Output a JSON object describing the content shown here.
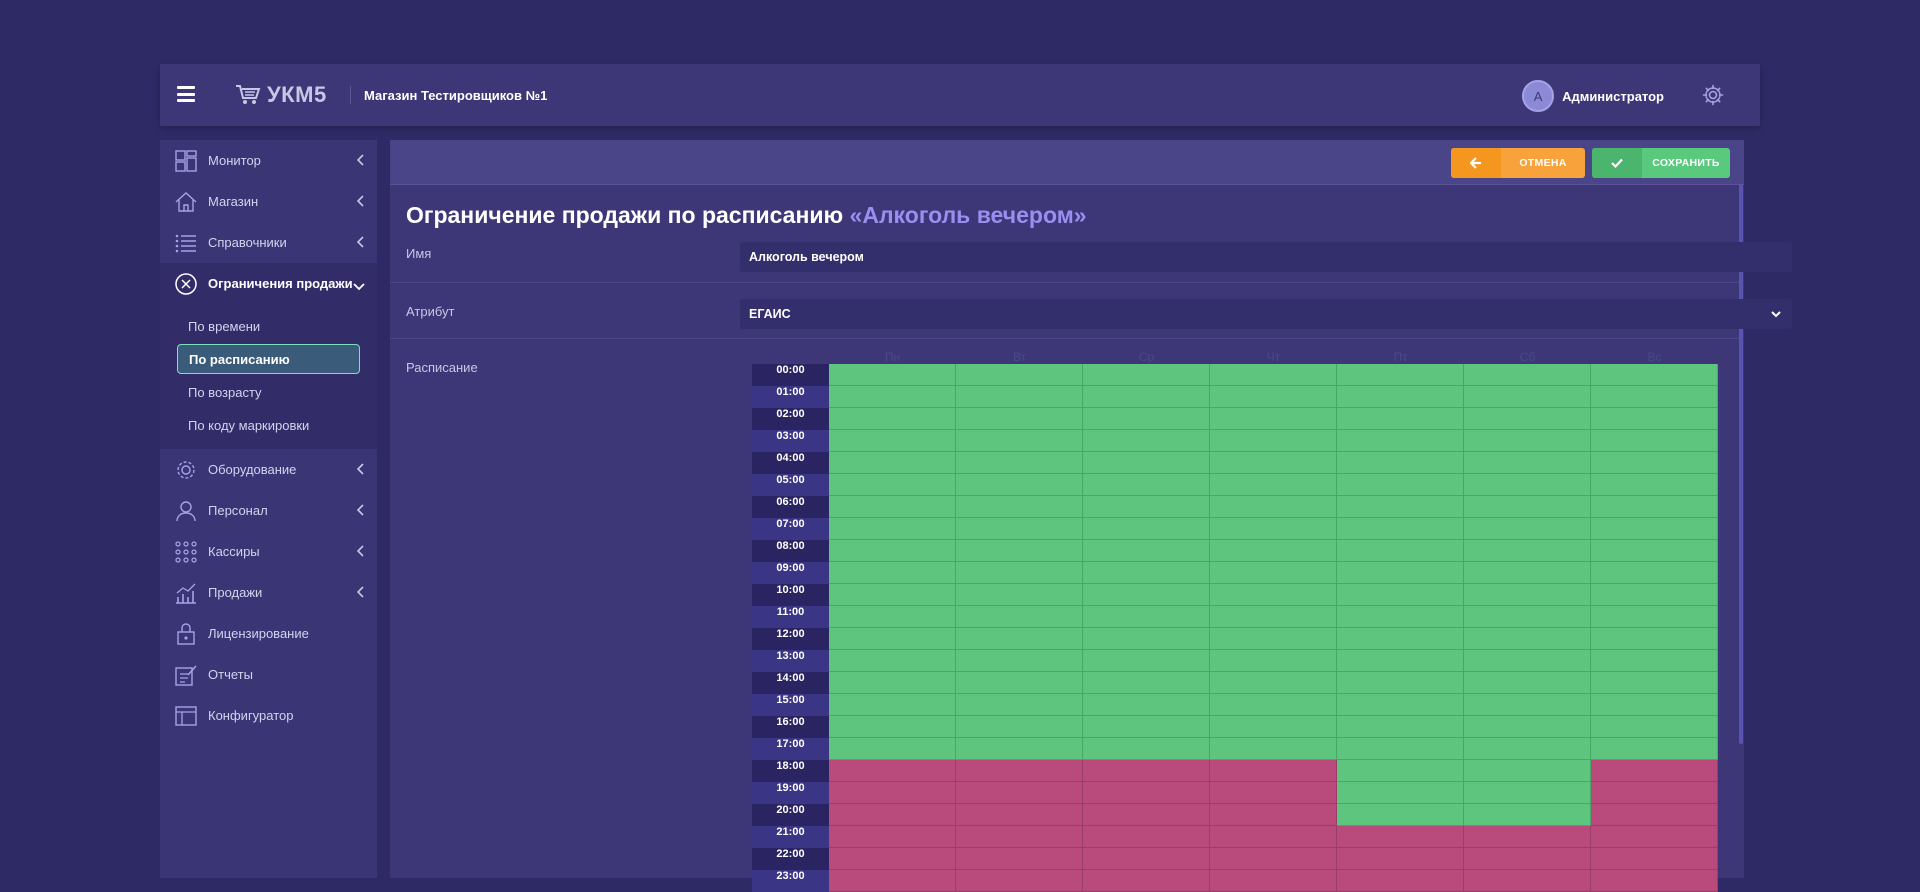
{
  "header": {
    "logo_text": "УКМ5",
    "store_name": "Магазин Тестировщиков №1",
    "user": {
      "initial": "А",
      "name": "Администратор"
    }
  },
  "sidebar": {
    "items": [
      {
        "label": "Монитор",
        "icon": "monitor-icon",
        "chevron": "left"
      },
      {
        "label": "Магазин",
        "icon": "home-icon",
        "chevron": "left"
      },
      {
        "label": "Справочники",
        "icon": "list-icon",
        "chevron": "left"
      },
      {
        "label": "Ограничения продажи",
        "icon": "restriction-icon",
        "chevron": "down",
        "active": true
      }
    ],
    "submenu": [
      {
        "label": "По времени"
      },
      {
        "label": "По расписанию",
        "active": true
      },
      {
        "label": "По возрасту"
      },
      {
        "label": "По коду маркировки"
      }
    ],
    "items_after": [
      {
        "label": "Оборудование",
        "icon": "gear-icon",
        "chevron": "left"
      },
      {
        "label": "Персонал",
        "icon": "person-icon",
        "chevron": "left"
      },
      {
        "label": "Кассиры",
        "icon": "grid-dots-icon",
        "chevron": "left"
      },
      {
        "label": "Продажи",
        "icon": "bar-chart-icon",
        "chevron": "left"
      },
      {
        "label": "Лицензирование",
        "icon": "lock-icon"
      },
      {
        "label": "Отчеты",
        "icon": "report-icon"
      },
      {
        "label": "Конфигуратор",
        "icon": "configurator-icon"
      }
    ]
  },
  "toolbar": {
    "cancel_label": "ОТМЕНА",
    "save_label": "СОХРАНИТЬ"
  },
  "page": {
    "title": "Ограничение продажи по расписанию",
    "title_accent": "«Алкоголь вечером»"
  },
  "form": {
    "name_label": "Имя",
    "name_value": "Алкоголь вечером",
    "attribute_label": "Атрибут",
    "attribute_value": "ЕГАИС",
    "schedule_label": "Расписание"
  },
  "schedule": {
    "days": [
      "Пн",
      "Вт",
      "Ср",
      "Чт",
      "Пт",
      "Сб",
      "Вс"
    ],
    "hours": [
      "00:00",
      "01:00",
      "02:00",
      "03:00",
      "04:00",
      "05:00",
      "06:00",
      "07:00",
      "08:00",
      "09:00",
      "10:00",
      "11:00",
      "12:00",
      "13:00",
      "14:00",
      "15:00",
      "16:00",
      "17:00",
      "18:00",
      "19:00",
      "20:00",
      "21:00",
      "22:00",
      "23:00"
    ],
    "colors": {
      "allowed": "#5dc57e",
      "restricted": "#b84a7c"
    },
    "restricted": [
      [
        18,
        19,
        20,
        21,
        22,
        23
      ],
      [
        18,
        19,
        20,
        21,
        22,
        23
      ],
      [
        18,
        19,
        20,
        21,
        22,
        23
      ],
      [
        18,
        19,
        20,
        21,
        22,
        23
      ],
      [
        21,
        22,
        23
      ],
      [
        21,
        22,
        23
      ],
      [
        18,
        19,
        20,
        21,
        22,
        23
      ]
    ]
  }
}
